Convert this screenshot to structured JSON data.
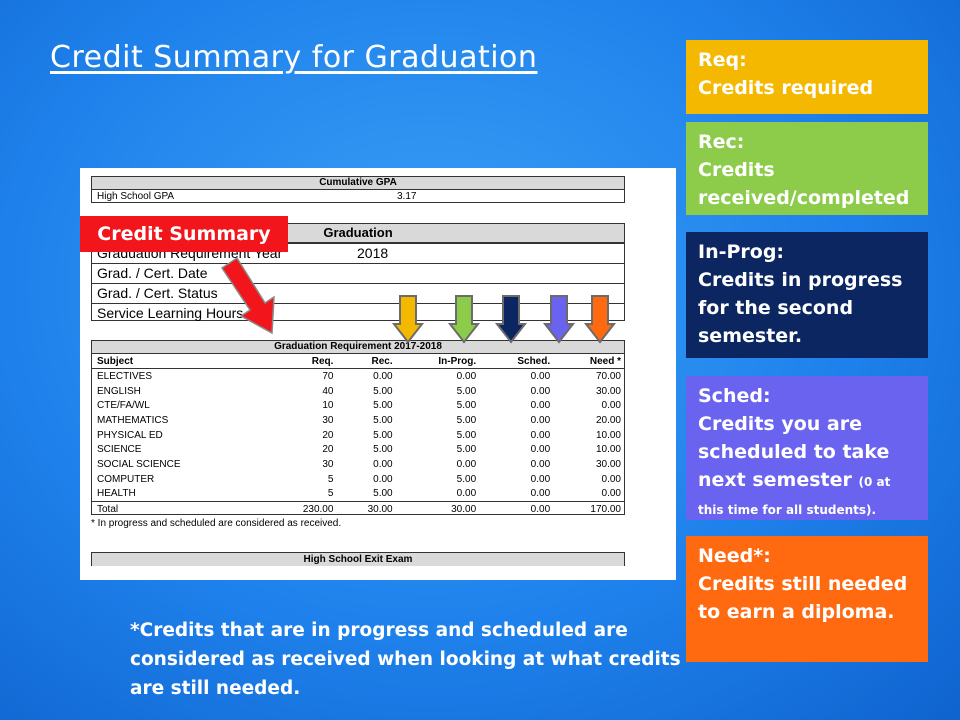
{
  "slide": {
    "title": "Credit Summary for Graduation",
    "tag_label": "Credit Summary",
    "bottom_note": "*Credits that are in progress and scheduled are considered as received when looking at what credits are still needed."
  },
  "legend": {
    "req": {
      "label": "Req:",
      "desc": "Credits required",
      "color": "#f5b800"
    },
    "rec": {
      "label": "Rec:",
      "desc": "Credits received/completed",
      "color": "#8dcc4a"
    },
    "prog": {
      "label": "In-Prog:",
      "desc": "Credits in progress for the second semester.",
      "color": "#0b2660"
    },
    "sched": {
      "label": "Sched:",
      "desc": "Credits you are scheduled to take next semester",
      "note": "(0 at this time for all students).",
      "color": "#6a63f0"
    },
    "need": {
      "label": "Need*:",
      "desc": "Credits still needed to earn a diploma.",
      "color": "#ff6a10"
    }
  },
  "report": {
    "gpa": {
      "header": "Cumulative GPA",
      "label": "High School GPA",
      "value": "3.17"
    },
    "graduation": {
      "header": "Graduation",
      "rows": [
        {
          "label": "Graduation Requirement Year",
          "value": "2018"
        },
        {
          "label": "Grad. / Cert. Date",
          "value": ""
        },
        {
          "label": "Grad. / Cert. Status",
          "value": ""
        },
        {
          "label": "Service Learning Hours",
          "value": ""
        }
      ]
    },
    "requirement": {
      "header": "Graduation Requirement 2017-2018",
      "columns": [
        "Subject",
        "Req.",
        "Rec.",
        "In-Prog.",
        "Sched.",
        "Need *"
      ],
      "rows": [
        [
          "ELECTIVES",
          "70",
          "0.00",
          "0.00",
          "0.00",
          "70.00"
        ],
        [
          "ENGLISH",
          "40",
          "5.00",
          "5.00",
          "0.00",
          "30.00"
        ],
        [
          "CTE/FA/WL",
          "10",
          "5.00",
          "5.00",
          "0.00",
          "0.00"
        ],
        [
          "MATHEMATICS",
          "30",
          "5.00",
          "5.00",
          "0.00",
          "20.00"
        ],
        [
          "PHYSICAL ED",
          "20",
          "5.00",
          "5.00",
          "0.00",
          "10.00"
        ],
        [
          "SCIENCE",
          "20",
          "5.00",
          "5.00",
          "0.00",
          "10.00"
        ],
        [
          "SOCIAL SCIENCE",
          "30",
          "0.00",
          "0.00",
          "0.00",
          "30.00"
        ],
        [
          "COMPUTER",
          "5",
          "0.00",
          "5.00",
          "0.00",
          "0.00"
        ],
        [
          "HEALTH",
          "5",
          "5.00",
          "0.00",
          "0.00",
          "0.00"
        ]
      ],
      "total": [
        "Total",
        "230.00",
        "30.00",
        "30.00",
        "0.00",
        "170.00"
      ],
      "footnote": "* In progress and scheduled are considered as received."
    },
    "exam": {
      "header": "High School Exit Exam"
    }
  },
  "arrows": {
    "colors": [
      "#f5b800",
      "#8dcc4a",
      "#0b2660",
      "#6a63f0",
      "#ff6a10"
    ],
    "pointer_color": "#f2151b"
  }
}
